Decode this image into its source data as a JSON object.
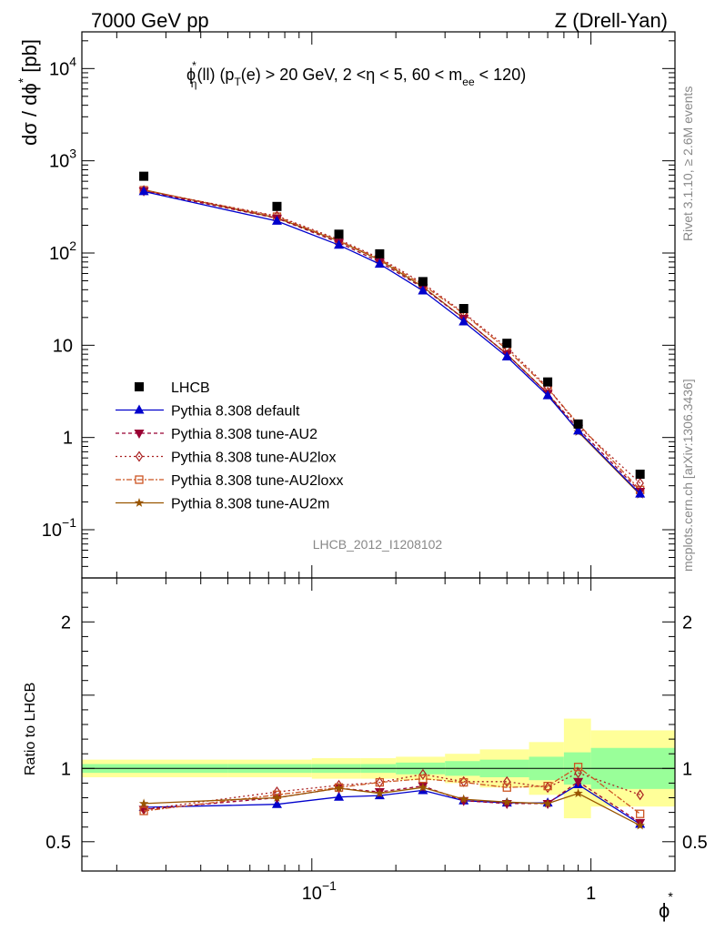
{
  "header": {
    "left": "7000 GeV pp",
    "right": "Z (Drell-Yan)"
  },
  "side_text": {
    "rivet": "Rivet 3.1.10, ≥ 2.6M events",
    "mcplots": "mcplots.cern.ch [arXiv:1306.3436]"
  },
  "watermark": "LHCB_2012_I1208102",
  "plot_title": {
    "phi": "ϕ",
    "star": "*",
    "eta_sub": "η",
    "part1": "(ll) (p",
    "T_sub": "T",
    "part2": "(e) > 20 GeV, 2 <η < 5, 60 < m",
    "ee_sub": "ee",
    "part3": " < 120)"
  },
  "ylabel_main": "dσ / dϕ",
  "ylabel_star": "*",
  "ylabel_unit": " [pb]",
  "ylabel_ratio": "Ratio to LHCB",
  "xlabel": "ϕ",
  "xlabel_star": "*",
  "colors": {
    "data": "#000000",
    "default": "#0000cc",
    "AU2": "#990033",
    "AU2lox": "#aa2222",
    "AU2loxx": "#cc5522",
    "AU2m": "#995500",
    "band_inner": "#99ff99",
    "band_outer": "#ffff99"
  },
  "chart_data": [
    {
      "type": "scatter",
      "panel": "main",
      "xscale": "log",
      "yscale": "log",
      "xlim": [
        0.015,
        2.0
      ],
      "ylim": [
        0.03,
        25000
      ],
      "legend_position": "bottom-left",
      "yticks": [
        {
          "v": 0.1,
          "base": "10",
          "exp": "−1"
        },
        {
          "v": 1,
          "base": "1",
          "exp": ""
        },
        {
          "v": 10,
          "base": "10",
          "exp": ""
        },
        {
          "v": 100,
          "base": "10",
          "exp": "2"
        },
        {
          "v": 1000,
          "base": "10",
          "exp": "3"
        },
        {
          "v": 10000,
          "base": "10",
          "exp": "4"
        }
      ],
      "x": [
        0.025,
        0.075,
        0.125,
        0.175,
        0.25,
        0.35,
        0.5,
        0.7,
        0.9,
        1.5
      ],
      "series": [
        {
          "name": "LHCB",
          "key": "data",
          "marker": "square",
          "dash": "",
          "values": [
            680,
            320,
            160,
            98,
            49,
            25,
            10.5,
            4.0,
            1.4,
            0.4
          ]
        },
        {
          "name": "Pythia 8.308 default",
          "key": "default",
          "marker": "triangle-up",
          "dash": "",
          "values": [
            465,
            222,
            122,
            76,
            39,
            18,
            7.5,
            2.85,
            1.18,
            0.245
          ]
        },
        {
          "name": "Pythia 8.308 tune-AU2",
          "key": "AU2",
          "marker": "triangle-down",
          "dash": "4,3",
          "values": [
            470,
            238,
            130,
            80,
            42,
            19.5,
            8.0,
            3.0,
            1.25,
            0.26
          ]
        },
        {
          "name": "Pythia 8.308 tune-AU2lox",
          "key": "AU2lox",
          "marker": "diamond",
          "dash": "2,3",
          "values": [
            475,
            252,
            140,
            88,
            47,
            22.5,
            9.5,
            3.5,
            1.33,
            0.32
          ]
        },
        {
          "name": "Pythia 8.308 tune-AU2loxx",
          "key": "AU2loxx",
          "marker": "open-square",
          "dash": "6,2,2,2",
          "values": [
            480,
            248,
            136,
            86,
            45,
            22.0,
            9.0,
            3.4,
            1.41,
            0.27
          ]
        },
        {
          "name": "Pythia 8.308 tune-AU2m",
          "key": "AU2m",
          "marker": "star",
          "dash": "",
          "values": [
            485,
            240,
            135,
            84,
            43,
            19.5,
            8.0,
            3.0,
            1.15,
            0.24
          ]
        }
      ]
    },
    {
      "type": "line",
      "panel": "ratio",
      "xscale": "log",
      "yscale": "linear",
      "xlim": [
        0.015,
        2.0
      ],
      "ylim": [
        0.3,
        2.3
      ],
      "ylabel": "Ratio to LHCB",
      "yticks": [
        0.5,
        1,
        2
      ],
      "xticks": [
        {
          "v": 0.1,
          "base": "10",
          "exp": "−1"
        },
        {
          "v": 1,
          "base": "1",
          "exp": ""
        }
      ],
      "reference_line": 1,
      "band_edges": [
        0.015,
        0.05,
        0.1,
        0.15,
        0.2,
        0.3,
        0.4,
        0.6,
        0.8,
        1.0,
        2.0
      ],
      "band_inner": [
        0.03,
        0.03,
        0.03,
        0.03,
        0.04,
        0.05,
        0.06,
        0.08,
        0.11,
        0.14
      ],
      "band_outer": [
        0.06,
        0.06,
        0.07,
        0.07,
        0.08,
        0.1,
        0.13,
        0.18,
        0.34,
        0.26
      ],
      "x": [
        0.025,
        0.075,
        0.125,
        0.175,
        0.25,
        0.35,
        0.5,
        0.7,
        0.9,
        1.5
      ],
      "series": [
        {
          "name": "Pythia 8.308 default",
          "key": "default",
          "values": [
            0.735,
            0.755,
            0.805,
            0.815,
            0.85,
            0.78,
            0.765,
            0.765,
            0.89,
            0.62
          ]
        },
        {
          "name": "Pythia 8.308 tune-AU2",
          "key": "AU2",
          "values": [
            0.72,
            0.8,
            0.865,
            0.84,
            0.88,
            0.78,
            0.76,
            0.76,
            0.91,
            0.63
          ]
        },
        {
          "name": "Pythia 8.308 tune-AU2lox",
          "key": "AU2lox",
          "values": [
            0.72,
            0.84,
            0.885,
            0.905,
            0.96,
            0.91,
            0.91,
            0.87,
            0.97,
            0.82
          ]
        },
        {
          "name": "Pythia 8.308 tune-AU2loxx",
          "key": "AU2loxx",
          "values": [
            0.71,
            0.82,
            0.87,
            0.905,
            0.93,
            0.905,
            0.87,
            0.88,
            1.01,
            0.69
          ]
        },
        {
          "name": "Pythia 8.308 tune-AU2m",
          "key": "AU2m",
          "values": [
            0.76,
            0.8,
            0.865,
            0.83,
            0.87,
            0.79,
            0.77,
            0.76,
            0.83,
            0.61
          ]
        }
      ]
    }
  ]
}
